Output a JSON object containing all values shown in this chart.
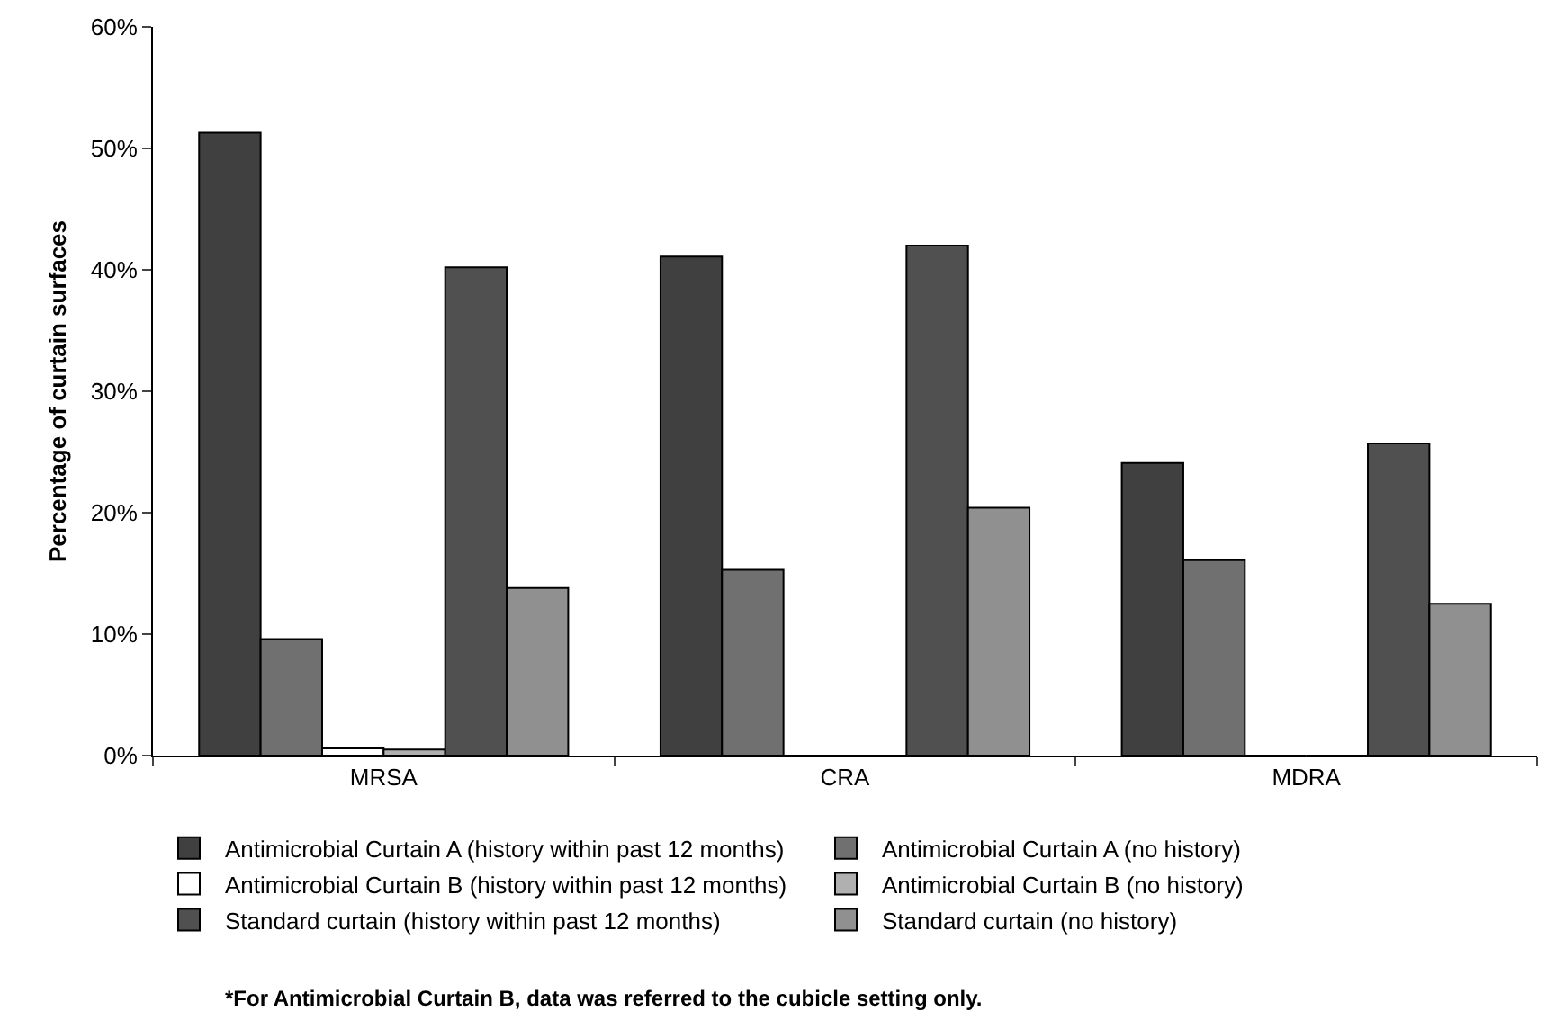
{
  "chart_data": {
    "type": "bar",
    "ylabel": "Percentage of curtain surfaces",
    "categories": [
      "MRSA",
      "CRA",
      "MDRA"
    ],
    "series": [
      {
        "name": "Antimicrobial Curtain A (history within past 12 months)",
        "color": "#404040",
        "values": [
          51.3,
          41.1,
          24.1
        ]
      },
      {
        "name": "Antimicrobial Curtain A (no history)",
        "color": "#707070",
        "values": [
          9.6,
          15.3,
          16.1
        ]
      },
      {
        "name": "Antimicrobial Curtain B (history within past 12 months)",
        "color": "#ffffff",
        "values": [
          0.6,
          0,
          0
        ]
      },
      {
        "name": "Antimicrobial Curtain B (no history)",
        "color": "#b0b0b0",
        "values": [
          0.5,
          0,
          0
        ]
      },
      {
        "name": "Standard curtain (history within past 12 months)",
        "color": "#505050",
        "values": [
          40.2,
          42.0,
          25.7
        ]
      },
      {
        "name": "Standard curtain (no history)",
        "color": "#909090",
        "values": [
          13.8,
          20.4,
          12.5
        ]
      }
    ],
    "ylim": [
      0,
      60
    ],
    "yticks": [
      {
        "value": 0,
        "label": "0%"
      },
      {
        "value": 10,
        "label": "10%"
      },
      {
        "value": 20,
        "label": "20%"
      },
      {
        "value": 30,
        "label": "30%"
      },
      {
        "value": 40,
        "label": "40%"
      },
      {
        "value": 50,
        "label": "50%"
      },
      {
        "value": 60,
        "label": "60%"
      }
    ],
    "grid": false,
    "legend": "bottom",
    "annotations": [
      "*For Antimicrobial Curtain B, data was referred to the cubicle setting only."
    ]
  }
}
